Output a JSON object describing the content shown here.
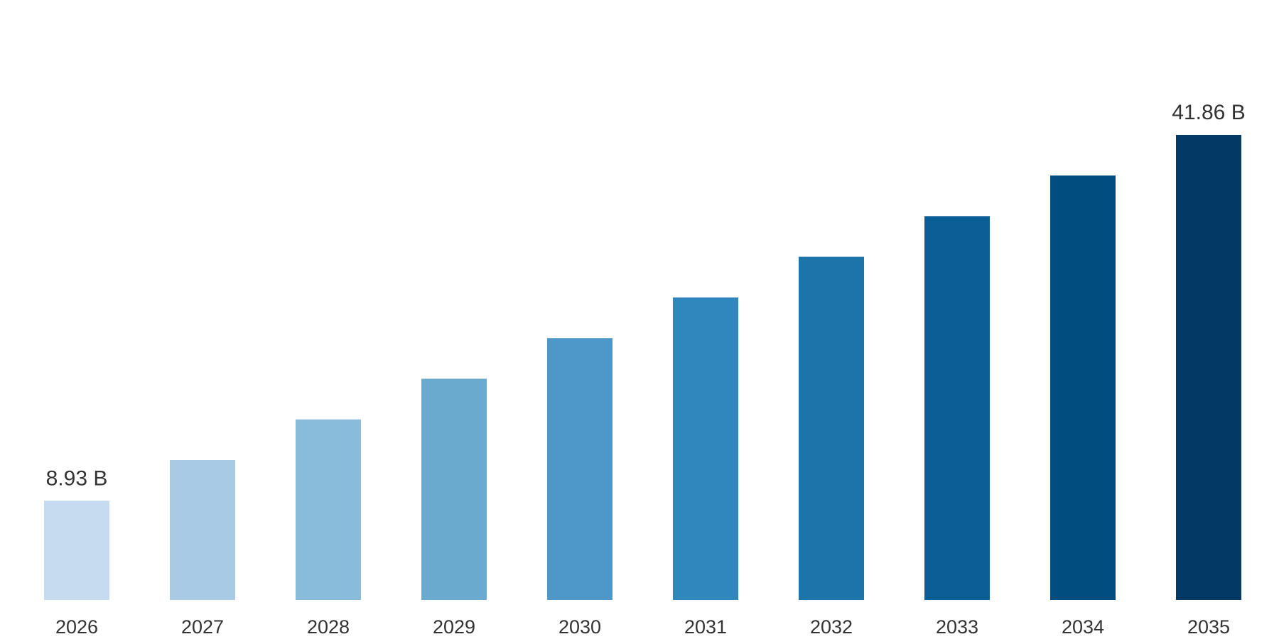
{
  "chart_data": {
    "type": "bar",
    "categories": [
      "2026",
      "2027",
      "2028",
      "2029",
      "2030",
      "2031",
      "2032",
      "2033",
      "2034",
      "2035"
    ],
    "values": [
      8.93,
      12.59,
      16.25,
      19.91,
      23.57,
      27.23,
      30.89,
      34.55,
      38.2,
      41.86
    ],
    "value_labels": [
      "8.93 B",
      "",
      "",
      "",
      "",
      "",
      "",
      "",
      "",
      "41.86 B"
    ],
    "bar_colors": [
      "#c6dbef",
      "#a9cae4",
      "#89bbda",
      "#6aaacf",
      "#4d98c8",
      "#3087bd",
      "#1d74aa",
      "#0b5e96",
      "#014d80",
      "#023a65"
    ],
    "title": "",
    "xlabel": "",
    "ylabel": "",
    "ylim": [
      0,
      41.86
    ],
    "grid": false,
    "legend": "none"
  }
}
